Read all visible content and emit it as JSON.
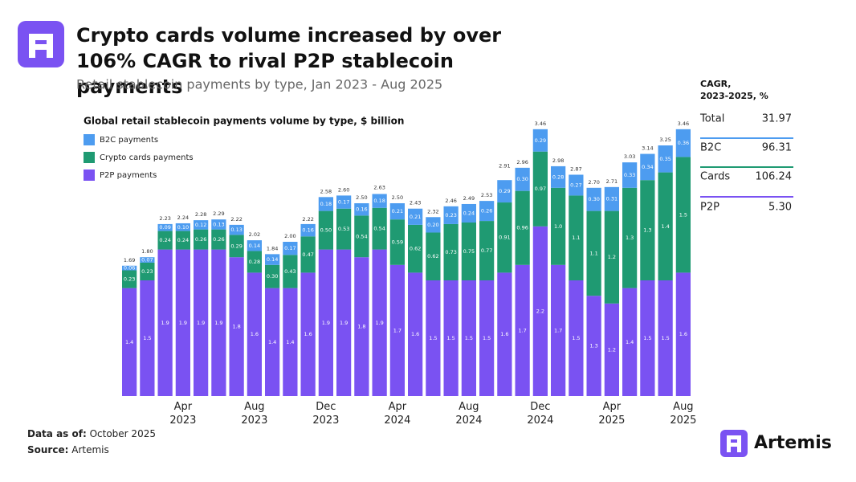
{
  "header": {
    "title": "Crypto cards volume increased by over 106% CAGR to rival P2P stablecoin payments",
    "subtitle": "Retail stablecoin payments by type, Jan 2023 - Aug 2025"
  },
  "chart_data": {
    "type": "stacked-bar",
    "title": "Global retail stablecoin payments volume by type, $ billion",
    "categories": [
      null,
      null,
      null,
      "Apr 2023",
      null,
      null,
      null,
      "Aug 2023",
      null,
      null,
      null,
      "Dec 2023",
      null,
      null,
      null,
      "Apr 2024",
      null,
      null,
      null,
      "Aug 2024",
      null,
      null,
      null,
      "Dec 2024",
      null,
      null,
      null,
      "Apr 2025",
      null,
      null,
      null,
      "Aug 2025"
    ],
    "series": [
      {
        "name": "B2C payments",
        "color": "#4d9cf0",
        "values": [
          0.06,
          0.07,
          0.09,
          0.1,
          0.12,
          0.13,
          0.13,
          0.14,
          0.14,
          0.17,
          0.16,
          0.18,
          0.17,
          0.16,
          0.18,
          0.21,
          0.21,
          0.2,
          0.23,
          0.24,
          0.26,
          0.29,
          0.3,
          0.29,
          0.28,
          0.27,
          0.3,
          0.31,
          0.33,
          0.34,
          0.35,
          0.36
        ],
        "value_labels": [
          "0.06",
          "0.07",
          "0.09",
          "0.10",
          "0.12",
          "0.13",
          "0.13",
          "0.14",
          "0.14",
          "0.17",
          "0.16",
          "0.18",
          "0.17",
          "0.16",
          "0.18",
          "0.21",
          "0.21",
          "0.20",
          "0.23",
          "0.24",
          "0.26",
          "0.29",
          "0.30",
          "0.29",
          "0.28",
          "0.27",
          "0.30",
          "0.31",
          "0.33",
          "0.34",
          "0.35",
          "0.36"
        ]
      },
      {
        "name": "Crypto cards payments",
        "color": "#1f9a72",
        "values": [
          0.23,
          0.23,
          0.24,
          0.24,
          0.26,
          0.26,
          0.29,
          0.28,
          0.3,
          0.43,
          0.47,
          0.5,
          0.53,
          0.54,
          0.54,
          0.59,
          0.62,
          0.62,
          0.73,
          0.75,
          0.77,
          0.91,
          0.96,
          0.97,
          1.0,
          1.1,
          1.1,
          1.2,
          1.3,
          1.3,
          1.4,
          1.5
        ],
        "value_labels": [
          "0.23",
          "0.23",
          "0.24",
          "0.24",
          "0.26",
          "0.26",
          "0.29",
          "0.28",
          "0.30",
          "0.43",
          "0.47",
          "0.50",
          "0.53",
          "0.54",
          "0.54",
          "0.59",
          "0.62",
          "0.62",
          "0.73",
          "0.75",
          "0.77",
          "0.91",
          "0.96",
          "0.97",
          "1.0",
          "1.1",
          "1.1",
          "1.2",
          "1.3",
          "1.3",
          "1.4",
          "1.5"
        ]
      },
      {
        "name": "P2P payments",
        "color": "#7a52f2",
        "values": [
          1.4,
          1.5,
          1.9,
          1.9,
          1.9,
          1.9,
          1.8,
          1.6,
          1.4,
          1.4,
          1.6,
          1.9,
          1.9,
          1.8,
          1.9,
          1.7,
          1.6,
          1.5,
          1.5,
          1.5,
          1.5,
          1.6,
          1.7,
          2.2,
          1.7,
          1.5,
          1.3,
          1.2,
          1.4,
          1.5,
          1.5,
          1.6
        ]
      }
    ],
    "totals": {
      "values": [
        1.69,
        1.8,
        2.23,
        2.24,
        2.28,
        2.29,
        2.22,
        2.02,
        1.84,
        2.0,
        2.22,
        2.58,
        2.6,
        2.5,
        2.63,
        2.5,
        2.43,
        2.32,
        2.46,
        2.49,
        2.53,
        2.91,
        2.96,
        3.46,
        2.98,
        2.87,
        2.7,
        2.71,
        3.03,
        3.14,
        3.25,
        3.46
      ],
      "value_labels": [
        "1.69",
        "1.80",
        "2.23",
        "2.24",
        "2.28",
        "2.29",
        "2.22",
        "2.02",
        "1.84",
        "2.00",
        "2.22",
        "2.58",
        "2.60",
        "2.50",
        "2.63",
        "2.50",
        "2.43",
        "2.32",
        "2.46",
        "2.49",
        "2.53",
        "2.91",
        "2.96",
        "3.46",
        "2.98",
        "2.87",
        "2.70",
        "2.71",
        "3.03",
        "3.14",
        "3.25",
        "3.46"
      ]
    }
  },
  "cagr_table": {
    "title": "CAGR, 2023-2025, %",
    "rows": [
      [
        "Total",
        "31.97"
      ],
      [
        "B2C",
        "96.31"
      ],
      [
        "Cards",
        "106.24"
      ],
      [
        "P2P",
        "5.30"
      ]
    ]
  },
  "footer": {
    "data_label": "Data as of:",
    "data_value": "October 2025",
    "source_label": "Source:",
    "source_value": "Artemis",
    "brand": "Artemis"
  }
}
